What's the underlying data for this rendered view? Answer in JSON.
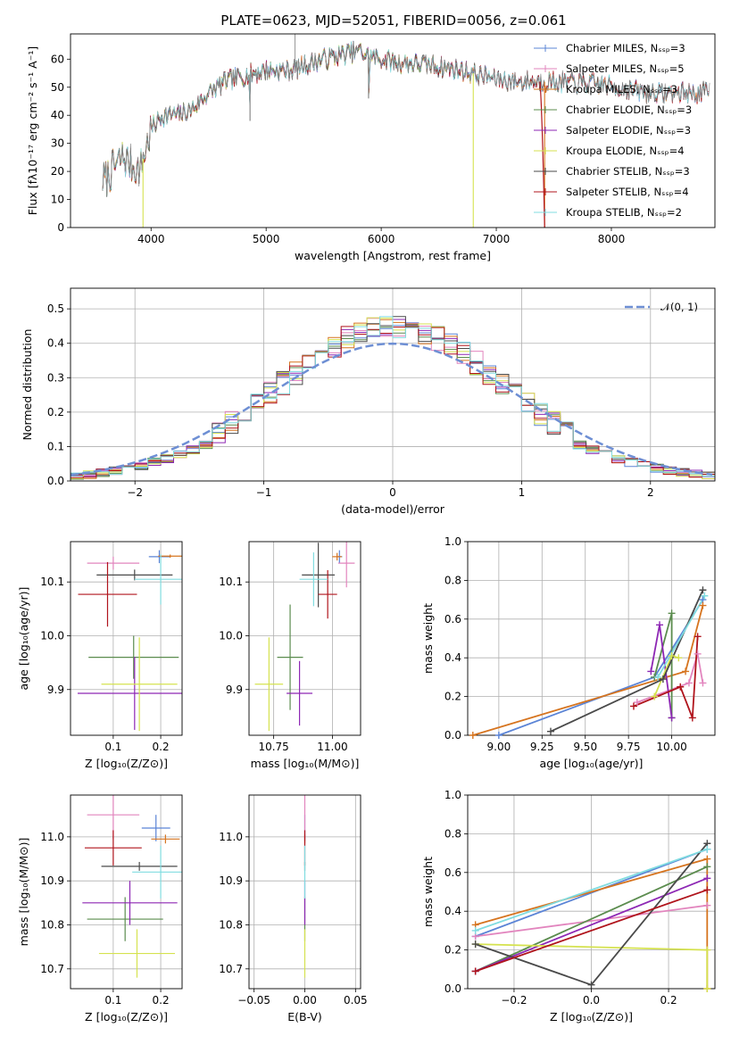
{
  "colors": {
    "Chabrier MILES": "#5b84d6",
    "Salpeter MILES": "#e285be",
    "Kroupa MILES": "#d6741f",
    "Chabrier ELODIE": "#5b8c4e",
    "Salpeter ELODIE": "#8d27b4",
    "Kroupa ELODIE": "#d5e24f",
    "Chabrier STELIB": "#4a4a4a",
    "Salpeter STELIB": "#b0141c",
    "Kroupa STELIB": "#80dce0",
    "normal": "#6e8fd4"
  },
  "chart_data": [
    {
      "id": "spectrum",
      "type": "line",
      "title": "PLATE=0623, MJD=52051, FIBERID=0056, z=0.061",
      "xlabel": "wavelength [Angstrom, rest frame]",
      "ylabel": "Flux [fλ10⁻¹⁷ erg cm⁻² s⁻¹ A⁻¹]",
      "xlim": [
        3300,
        8900
      ],
      "ylim": [
        0,
        69
      ],
      "xticks": [
        4000,
        5000,
        6000,
        7000,
        8000
      ],
      "yticks": [
        0,
        10,
        20,
        30,
        40,
        50,
        60
      ],
      "grid": false,
      "legend_position": "top-right",
      "legend": [
        "Chabrier MILES, Nₛₛₚ=3",
        "Salpeter MILES, Nₛₛₚ=5",
        "Kroupa MILES, Nₛₛₚ=3",
        "Chabrier ELODIE, Nₛₛₚ=3",
        "Salpeter ELODIE, Nₛₛₚ=3",
        "Kroupa ELODIE, Nₛₛₚ=4",
        "Chabrier STELIB, Nₛₛₚ=3",
        "Salpeter STELIB, Nₛₛₚ=4",
        "Kroupa STELIB, Nₛₛₚ=2"
      ],
      "series_envelope": {
        "x": [
          3600,
          3750,
          3900,
          4000,
          4100,
          4250,
          4350,
          4500,
          4650,
          4800,
          5000,
          5200,
          5500,
          5800,
          5900,
          6100,
          6400,
          6700,
          7000,
          7200,
          7500,
          7900,
          8300,
          8850
        ],
        "y": [
          17,
          25,
          20,
          35,
          40,
          40,
          42,
          48,
          52,
          54,
          56,
          56,
          60,
          63,
          61,
          59,
          58,
          56,
          53,
          52,
          52,
          51,
          48,
          48
        ]
      },
      "drops": [
        {
          "x": 3930,
          "y": 0
        },
        {
          "x": 4860,
          "y": 38
        },
        {
          "x": 5890,
          "y": 46
        },
        {
          "x": 6800,
          "y": 0
        },
        {
          "x": 7420,
          "y": 0
        }
      ]
    },
    {
      "id": "residuals",
      "type": "histogram",
      "xlabel": "(data-model)/error",
      "ylabel": "Normed distribution",
      "xlim": [
        -2.5,
        2.5
      ],
      "ylim": [
        0,
        0.56
      ],
      "xticks": [
        -2,
        -1,
        0,
        1,
        2
      ],
      "yticks": [
        0.0,
        0.1,
        0.2,
        0.3,
        0.4,
        0.5
      ],
      "grid": true,
      "legend_position": "top-right",
      "legend": [
        "𝒩(0, 1)"
      ]
    },
    {
      "id": "age-vs-Z",
      "type": "errorbar",
      "xlabel": "Z [log₁₀(Z/Z⊙)]",
      "ylabel": "age  [log₁₀(age/yr)]",
      "xlim": [
        0.01,
        0.245
      ],
      "ylim": [
        9.815,
        10.175
      ],
      "xticks": [
        0.1,
        0.2
      ],
      "yticks": [
        9.9,
        10.0,
        10.1
      ],
      "grid": true,
      "points": [
        {
          "model": "Chabrier MILES",
          "x": 0.197,
          "y": 10.147,
          "xerr": 0.022,
          "yerr": 0.012
        },
        {
          "model": "Salpeter MILES",
          "x": 0.1,
          "y": 10.135,
          "xerr": 0.055,
          "yerr": 0.012
        },
        {
          "model": "Kroupa MILES",
          "x": 0.22,
          "y": 10.148,
          "xerr": 0.025,
          "yerr": 0.003
        },
        {
          "model": "Chabrier ELODIE",
          "x": 0.143,
          "y": 9.96,
          "xerr": 0.095,
          "yerr": 0.04
        },
        {
          "model": "Salpeter ELODIE",
          "x": 0.145,
          "y": 9.893,
          "xerr": 0.12,
          "yerr": 0.068
        },
        {
          "model": "Kroupa ELODIE",
          "x": 0.155,
          "y": 9.91,
          "xerr": 0.08,
          "yerr": 0.087
        },
        {
          "model": "Chabrier STELIB",
          "x": 0.145,
          "y": 10.113,
          "xerr": 0.08,
          "yerr": 0.01
        },
        {
          "model": "Salpeter STELIB",
          "x": 0.088,
          "y": 10.077,
          "xerr": 0.062,
          "yerr": 0.06
        },
        {
          "model": "Kroupa STELIB",
          "x": 0.2,
          "y": 10.105,
          "xerr": 0.055,
          "yerr": 0.047
        }
      ]
    },
    {
      "id": "age-vs-mass",
      "type": "errorbar",
      "xlabel": "mass [log₁₀(M/M⊙)]",
      "ylabel": "",
      "xlim": [
        10.645,
        11.12
      ],
      "ylim": [
        9.815,
        10.175
      ],
      "xticks": [
        10.75,
        11.0
      ],
      "yticks": [
        9.9,
        10.0,
        10.1
      ],
      "grid": true,
      "points": [
        {
          "model": "Chabrier MILES",
          "x": 11.03,
          "y": 10.147,
          "xerr": 0.012,
          "yerr": 0.012
        },
        {
          "model": "Salpeter MILES",
          "x": 11.06,
          "y": 10.135,
          "xerr": 0.035,
          "yerr": 0.045
        },
        {
          "model": "Kroupa MILES",
          "x": 11.02,
          "y": 10.147,
          "xerr": 0.02,
          "yerr": 0.007
        },
        {
          "model": "Chabrier ELODIE",
          "x": 10.82,
          "y": 9.96,
          "xerr": 0.055,
          "yerr": 0.098
        },
        {
          "model": "Salpeter ELODIE",
          "x": 10.86,
          "y": 9.893,
          "xerr": 0.055,
          "yerr": 0.06
        },
        {
          "model": "Kroupa ELODIE",
          "x": 10.73,
          "y": 9.91,
          "xerr": 0.06,
          "yerr": 0.087
        },
        {
          "model": "Chabrier STELIB",
          "x": 10.94,
          "y": 10.113,
          "xerr": 0.07,
          "yerr": 0.06
        },
        {
          "model": "Salpeter STELIB",
          "x": 10.98,
          "y": 10.077,
          "xerr": 0.04,
          "yerr": 0.045
        },
        {
          "model": "Kroupa STELIB",
          "x": 10.92,
          "y": 10.105,
          "xerr": 0.06,
          "yerr": 0.05
        }
      ]
    },
    {
      "id": "weight-vs-age",
      "type": "line",
      "xlabel": "age  [log₁₀(age/yr)]",
      "ylabel": "mass weight",
      "xlim": [
        8.82,
        10.25
      ],
      "ylim": [
        0,
        1.0
      ],
      "xticks": [
        9.0,
        9.25,
        9.5,
        9.75,
        10.0
      ],
      "yticks": [
        0.0,
        0.2,
        0.4,
        0.6,
        0.8,
        1.0
      ],
      "grid": true,
      "series": [
        {
          "model": "Chabrier MILES",
          "points": [
            [
              9.0,
              0.0
            ],
            [
              9.9,
              0.3
            ],
            [
              10.18,
              0.7
            ]
          ]
        },
        {
          "model": "Salpeter MILES",
          "points": [
            [
              9.8,
              0.17
            ],
            [
              10.1,
              0.27
            ],
            [
              10.15,
              0.42
            ],
            [
              10.18,
              0.27
            ]
          ]
        },
        {
          "model": "Kroupa MILES",
          "points": [
            [
              8.85,
              0.0
            ],
            [
              10.08,
              0.33
            ],
            [
              10.18,
              0.67
            ]
          ]
        },
        {
          "model": "Chabrier ELODIE",
          "points": [
            [
              9.9,
              0.3
            ],
            [
              10.0,
              0.63
            ],
            [
              10.0,
              0.09
            ]
          ]
        },
        {
          "model": "Salpeter ELODIE",
          "points": [
            [
              9.88,
              0.33
            ],
            [
              9.93,
              0.57
            ],
            [
              10.0,
              0.09
            ]
          ]
        },
        {
          "model": "Kroupa ELODIE",
          "points": [
            [
              9.9,
              0.2
            ],
            [
              10.0,
              0.41
            ],
            [
              10.04,
              0.4
            ]
          ]
        },
        {
          "model": "Chabrier STELIB",
          "points": [
            [
              9.3,
              0.02
            ],
            [
              9.95,
              0.29
            ],
            [
              10.18,
              0.75
            ]
          ]
        },
        {
          "model": "Salpeter STELIB",
          "points": [
            [
              9.78,
              0.15
            ],
            [
              10.05,
              0.25
            ],
            [
              10.12,
              0.09
            ],
            [
              10.15,
              0.51
            ]
          ]
        },
        {
          "model": "Kroupa STELIB",
          "points": [
            [
              9.92,
              0.3
            ],
            [
              10.19,
              0.72
            ]
          ]
        }
      ]
    },
    {
      "id": "mass-vs-Z",
      "type": "errorbar",
      "xlabel": "Z [log₁₀(Z/Z⊙)]",
      "ylabel": "mass [log₁₀(M/M⊙)]",
      "xlim": [
        0.01,
        0.245
      ],
      "ylim": [
        10.655,
        11.095
      ],
      "xticks": [
        0.1,
        0.2
      ],
      "yticks": [
        10.7,
        10.8,
        10.9,
        11.0
      ],
      "grid": true,
      "points": [
        {
          "model": "Chabrier MILES",
          "x": 0.19,
          "y": 11.02,
          "xerr": 0.03,
          "yerr": 0.03
        },
        {
          "model": "Salpeter MILES",
          "x": 0.1,
          "y": 11.05,
          "xerr": 0.055,
          "yerr": 0.055
        },
        {
          "model": "Kroupa MILES",
          "x": 0.21,
          "y": 10.995,
          "xerr": 0.03,
          "yerr": 0.01
        },
        {
          "model": "Chabrier ELODIE",
          "x": 0.125,
          "y": 10.813,
          "xerr": 0.08,
          "yerr": 0.05
        },
        {
          "model": "Salpeter ELODIE",
          "x": 0.135,
          "y": 10.85,
          "xerr": 0.1,
          "yerr": 0.05
        },
        {
          "model": "Kroupa ELODIE",
          "x": 0.15,
          "y": 10.735,
          "xerr": 0.08,
          "yerr": 0.055
        },
        {
          "model": "Chabrier STELIB",
          "x": 0.155,
          "y": 10.933,
          "xerr": 0.08,
          "yerr": 0.01
        },
        {
          "model": "Salpeter STELIB",
          "x": 0.1,
          "y": 10.975,
          "xerr": 0.06,
          "yerr": 0.04
        },
        {
          "model": "Kroupa STELIB",
          "x": 0.2,
          "y": 10.92,
          "xerr": 0.06,
          "yerr": 0.06
        }
      ]
    },
    {
      "id": "mass-vs-EBV",
      "type": "errorbar",
      "xlabel": "E(B-V)",
      "ylabel": "",
      "xlim": [
        -0.055,
        0.055
      ],
      "ylim": [
        10.655,
        11.095
      ],
      "xticks": [
        -0.05,
        0.0,
        0.05
      ],
      "yticks": [
        10.7,
        10.8,
        10.9,
        11.0
      ],
      "grid": true,
      "points": [
        {
          "model": "Chabrier MILES",
          "x": 0.0,
          "y": 11.02,
          "xerr": 0,
          "yerr": 0.03
        },
        {
          "model": "Salpeter MILES",
          "x": 0.0,
          "y": 11.05,
          "xerr": 0,
          "yerr": 0.055
        },
        {
          "model": "Kroupa MILES",
          "x": 0.0,
          "y": 10.995,
          "xerr": 0,
          "yerr": 0.01
        },
        {
          "model": "Chabrier ELODIE",
          "x": 0.0,
          "y": 10.813,
          "xerr": 0,
          "yerr": 0.05
        },
        {
          "model": "Salpeter ELODIE",
          "x": 0.0,
          "y": 10.85,
          "xerr": 0,
          "yerr": 0.05
        },
        {
          "model": "Kroupa ELODIE",
          "x": 0.0,
          "y": 10.735,
          "xerr": 0,
          "yerr": 0.055
        },
        {
          "model": "Chabrier STELIB",
          "x": 0.0,
          "y": 10.933,
          "xerr": 0,
          "yerr": 0.01
        },
        {
          "model": "Salpeter STELIB",
          "x": 0.0,
          "y": 10.975,
          "xerr": 0,
          "yerr": 0.04
        },
        {
          "model": "Kroupa STELIB",
          "x": 0.0,
          "y": 10.92,
          "xerr": 0,
          "yerr": 0.06
        }
      ]
    },
    {
      "id": "weight-vs-Z",
      "type": "line",
      "xlabel": "Z [log₁₀(Z/Z⊙)]",
      "ylabel": "mass weight",
      "xlim": [
        -0.32,
        0.32
      ],
      "ylim": [
        0,
        1.0
      ],
      "xticks": [
        -0.2,
        0.0,
        0.2
      ],
      "yticks": [
        0.0,
        0.2,
        0.4,
        0.6,
        0.8,
        1.0
      ],
      "grid": true,
      "series": [
        {
          "model": "Chabrier MILES",
          "points": [
            [
              -0.3,
              0.27
            ],
            [
              0.3,
              0.72
            ]
          ]
        },
        {
          "model": "Salpeter MILES",
          "points": [
            [
              -0.3,
              0.27
            ],
            [
              0.3,
              0.43
            ]
          ]
        },
        {
          "model": "Kroupa MILES",
          "points": [
            [
              -0.3,
              0.33
            ],
            [
              0.3,
              0.67
            ],
            [
              0.3,
              0.0
            ]
          ]
        },
        {
          "model": "Chabrier ELODIE",
          "points": [
            [
              -0.3,
              0.09
            ],
            [
              0.3,
              0.63
            ]
          ]
        },
        {
          "model": "Salpeter ELODIE",
          "points": [
            [
              -0.3,
              0.09
            ],
            [
              0.3,
              0.57
            ]
          ]
        },
        {
          "model": "Kroupa ELODIE",
          "points": [
            [
              -0.3,
              0.23
            ],
            [
              0.3,
              0.2
            ],
            [
              0.3,
              0.0
            ]
          ]
        },
        {
          "model": "Chabrier STELIB",
          "points": [
            [
              -0.3,
              0.23
            ],
            [
              0.0,
              0.02
            ],
            [
              0.3,
              0.75
            ]
          ]
        },
        {
          "model": "Salpeter STELIB",
          "points": [
            [
              -0.3,
              0.09
            ],
            [
              0.3,
              0.51
            ]
          ]
        },
        {
          "model": "Kroupa STELIB",
          "points": [
            [
              -0.3,
              0.3
            ],
            [
              0.3,
              0.72
            ]
          ]
        }
      ]
    }
  ]
}
